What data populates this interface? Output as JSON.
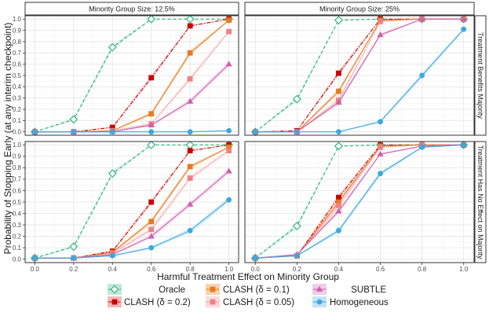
{
  "chart_data": {
    "type": "line",
    "xlabel": "Harmful Treatment Effect on Minority Group",
    "ylabel": "Probability of Stopping Early (at any interim checkpoint)",
    "x": [
      0.0,
      0.2,
      0.4,
      0.6,
      0.8,
      1.0
    ],
    "x_tick_labels": [
      "0.0",
      "0.2",
      "0.4",
      "0.6",
      "0.8",
      "1.0"
    ],
    "ylim": [
      0,
      1
    ],
    "y_ticks": [
      0.0,
      0.1,
      0.2,
      0.3,
      0.4,
      0.5,
      0.6,
      0.7,
      0.8,
      0.9,
      1.0
    ],
    "y_tick_labels": [
      "0.0",
      "0.1",
      "0.2",
      "0.3",
      "0.4",
      "0.5",
      "0.6",
      "0.7",
      "0.8",
      "0.9",
      "1.0"
    ],
    "grid": true,
    "legend_position": "bottom",
    "column_strips": [
      "Minority Group Size: 12.5%",
      "Minority Group Size: 25%"
    ],
    "row_strips": [
      "Treatment Benefits Majority",
      "Treatment Has No Effect on Majority"
    ],
    "series_styles": [
      {
        "key": "oracle",
        "color": "#1fb26f",
        "fill": "#bfead6",
        "marker": "diamond-open",
        "dash": "4,3"
      },
      {
        "key": "clash02",
        "color": "#cc0000",
        "fill": "#f3b9b9",
        "marker": "square",
        "dash": "5,2,1.5,2"
      },
      {
        "key": "clash01",
        "color": "#e87a1e",
        "fill": "#f8d2b0",
        "marker": "square",
        "dash": ""
      },
      {
        "key": "clash005",
        "color": "#f28080",
        "fill": "#fadada",
        "marker": "square",
        "dash": "1.5,1.5"
      },
      {
        "key": "subtle",
        "color": "#d060b0",
        "fill": "#f0cde6",
        "marker": "triangle",
        "dash": ""
      },
      {
        "key": "homog",
        "color": "#3ba8e0",
        "fill": "#c4e4f6",
        "marker": "circle",
        "dash": ""
      }
    ],
    "legend": [
      {
        "key": "oracle",
        "label": "Oracle"
      },
      {
        "key": "clash02",
        "label": "CLASH (δ = 0.2)"
      },
      {
        "key": "clash01",
        "label": "CLASH (δ = 0.1)"
      },
      {
        "key": "clash005",
        "label": "CLASH (δ = 0.05)"
      },
      {
        "key": "subtle",
        "label": "SUBTLE"
      },
      {
        "key": "homog",
        "label": "Homogeneous"
      }
    ],
    "panels": [
      {
        "row": 0,
        "col": 0,
        "series": [
          {
            "key": "oracle",
            "values": [
              0.0,
              0.11,
              0.75,
              1.0,
              1.0,
              1.0
            ]
          },
          {
            "key": "clash02",
            "values": [
              0.0,
              0.0,
              0.04,
              0.48,
              0.94,
              1.0
            ]
          },
          {
            "key": "clash01",
            "values": [
              0.0,
              0.0,
              0.01,
              0.16,
              0.7,
              0.99
            ]
          },
          {
            "key": "clash005",
            "values": [
              0.0,
              0.0,
              0.01,
              0.07,
              0.47,
              0.89
            ]
          },
          {
            "key": "subtle",
            "values": [
              0.0,
              0.0,
              0.0,
              0.06,
              0.27,
              0.6
            ]
          },
          {
            "key": "homog",
            "values": [
              0.0,
              0.0,
              0.0,
              0.0,
              0.0,
              0.01
            ]
          }
        ]
      },
      {
        "row": 0,
        "col": 1,
        "series": [
          {
            "key": "oracle",
            "values": [
              0.0,
              0.29,
              0.99,
              1.0,
              1.0,
              1.0
            ]
          },
          {
            "key": "clash02",
            "values": [
              0.0,
              0.01,
              0.52,
              1.0,
              1.0,
              1.0
            ]
          },
          {
            "key": "clash01",
            "values": [
              0.0,
              0.0,
              0.36,
              0.99,
              1.0,
              1.0
            ]
          },
          {
            "key": "clash005",
            "values": [
              0.0,
              0.0,
              0.28,
              0.98,
              1.0,
              1.0
            ]
          },
          {
            "key": "subtle",
            "values": [
              0.0,
              0.0,
              0.26,
              0.86,
              1.0,
              1.0
            ]
          },
          {
            "key": "homog",
            "values": [
              0.0,
              0.0,
              0.0,
              0.09,
              0.5,
              0.91
            ]
          }
        ]
      },
      {
        "row": 1,
        "col": 0,
        "series": [
          {
            "key": "oracle",
            "values": [
              0.01,
              0.11,
              0.75,
              1.0,
              1.0,
              1.0
            ]
          },
          {
            "key": "clash02",
            "values": [
              0.01,
              0.01,
              0.07,
              0.5,
              0.95,
              1.0
            ]
          },
          {
            "key": "clash01",
            "values": [
              0.01,
              0.01,
              0.06,
              0.33,
              0.81,
              0.98
            ]
          },
          {
            "key": "clash005",
            "values": [
              0.01,
              0.01,
              0.05,
              0.26,
              0.71,
              0.95
            ]
          },
          {
            "key": "subtle",
            "values": [
              0.01,
              0.01,
              0.04,
              0.2,
              0.48,
              0.77
            ]
          },
          {
            "key": "homog",
            "values": [
              0.01,
              0.01,
              0.03,
              0.1,
              0.25,
              0.52
            ]
          }
        ]
      },
      {
        "row": 1,
        "col": 1,
        "series": [
          {
            "key": "oracle",
            "values": [
              0.01,
              0.29,
              0.99,
              1.0,
              1.0,
              1.0
            ]
          },
          {
            "key": "clash02",
            "values": [
              0.01,
              0.03,
              0.54,
              1.0,
              1.0,
              1.0
            ]
          },
          {
            "key": "clash01",
            "values": [
              0.01,
              0.03,
              0.5,
              0.99,
              1.0,
              1.0
            ]
          },
          {
            "key": "clash005",
            "values": [
              0.01,
              0.03,
              0.47,
              0.98,
              1.0,
              1.0
            ]
          },
          {
            "key": "subtle",
            "values": [
              0.01,
              0.04,
              0.42,
              0.92,
              0.99,
              1.0
            ]
          },
          {
            "key": "homog",
            "values": [
              0.01,
              0.03,
              0.25,
              0.75,
              0.98,
              1.0
            ]
          }
        ]
      }
    ]
  }
}
